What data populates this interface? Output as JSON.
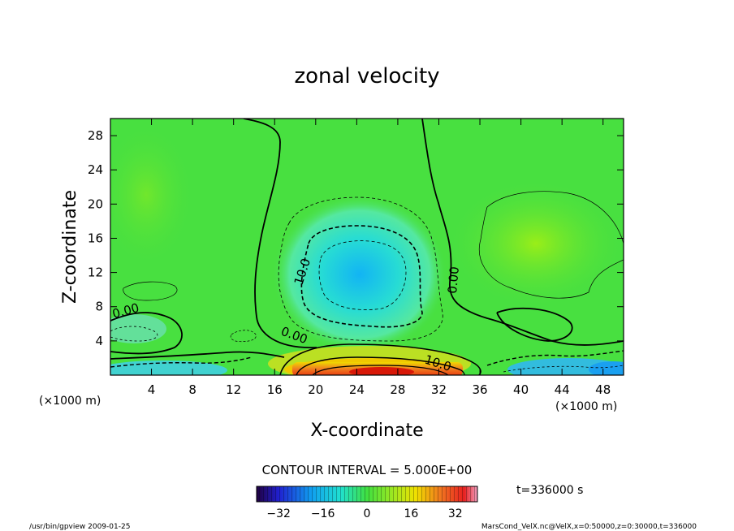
{
  "chart_data": {
    "type": "heatmap",
    "title": "zonal velocity",
    "xlabel": "X-coordinate",
    "ylabel": "Z-coordinate",
    "x_unit_note": "(×1000 m)",
    "y_unit_note": "(×1000 m)",
    "xlim": [
      0,
      50
    ],
    "ylim": [
      0,
      30
    ],
    "x_ticks": [
      4,
      8,
      12,
      16,
      20,
      24,
      28,
      32,
      36,
      40,
      44,
      48
    ],
    "y_ticks": [
      4,
      8,
      12,
      16,
      20,
      24,
      28
    ],
    "contour_interval_text": "CONTOUR INTERVAL = 5.000E+00",
    "contour_labels": [
      "0.00",
      "10.0",
      "0.00",
      "0.00",
      "10.0"
    ],
    "colorbar_ticks": [
      -32,
      -16,
      0,
      16,
      32
    ],
    "colorbar_range": [
      -40,
      40
    ],
    "time_label": "t=336000 s",
    "features": [
      {
        "name": "negative core aloft",
        "x": 24,
        "z": 12,
        "value": -20
      },
      {
        "name": "positive jet near surface",
        "x": 26,
        "z": 0.8,
        "value": 35
      },
      {
        "name": "weak positive region right",
        "x": 42,
        "z": 14,
        "value": 8
      },
      {
        "name": "negative patch lower right",
        "x": 48,
        "z": 0.8,
        "value": -12
      },
      {
        "name": "negative patch lower left",
        "x": 3,
        "z": 1,
        "value": -10
      }
    ]
  },
  "footer": {
    "left": "/usr/bin/gpview   2009-01-25",
    "right": "MarsCond_VelX.nc@VelX,x=0:50000,z=0:30000,t=336000"
  }
}
